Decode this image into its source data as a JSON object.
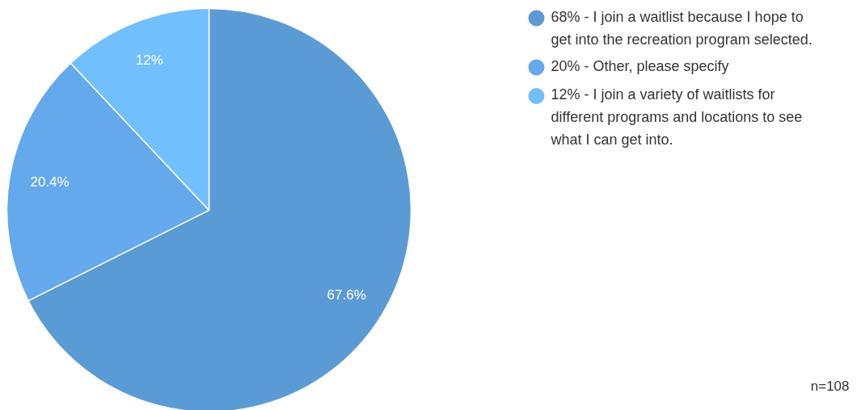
{
  "chart_data": {
    "type": "pie",
    "categories": [
      "68% - I join a waitlist because I hope to get into the recreation program selected.",
      "20% - Other, please specify",
      "12% - I join a variety of waitlists for different programs and locations to see what I can get into."
    ],
    "values": [
      67.6,
      20.4,
      12
    ],
    "colors": [
      "#5b9bd5",
      "#63a9ec",
      "#71bffd"
    ],
    "value_labels": [
      "67.6%",
      "20.4%",
      "12%"
    ],
    "legend": "right",
    "annotations": [
      "n=108"
    ]
  }
}
